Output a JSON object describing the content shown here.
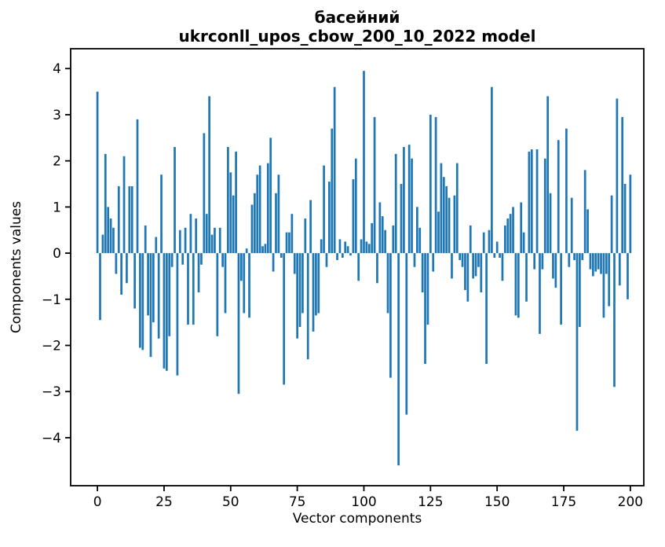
{
  "figure": {
    "background": "#ffffff"
  },
  "chart_data": {
    "type": "bar",
    "title": "басейний",
    "subtitle": "ukrconll_upos_cbow_200_10_2022 model",
    "xlabel": "Vector components",
    "ylabel": "Components values",
    "bar_color": "#1f77b4",
    "axis_color": "#000000",
    "grid": false,
    "legend_position": "none",
    "x_start": 0,
    "x_step": 1,
    "n_bars": 201,
    "xlim": [
      -10.05,
      205.05
    ],
    "ylim": [
      -5.04,
      4.43
    ],
    "xticks": {
      "values": [
        0,
        25,
        50,
        75,
        100,
        125,
        150,
        175,
        200
      ],
      "labels": [
        "0",
        "25",
        "50",
        "75",
        "100",
        "125",
        "150",
        "175",
        "200"
      ]
    },
    "yticks": {
      "values": [
        -4,
        -3,
        -2,
        -1,
        0,
        1,
        2,
        3,
        4
      ],
      "labels": [
        "−4",
        "−3",
        "−2",
        "−1",
        "0",
        "1",
        "2",
        "3",
        "4"
      ]
    },
    "values": [
      3.5,
      -1.45,
      0.4,
      2.15,
      1.0,
      0.75,
      0.55,
      -0.45,
      1.45,
      -0.9,
      2.1,
      -0.65,
      1.45,
      1.45,
      -1.2,
      2.9,
      -2.05,
      -2.1,
      0.6,
      -1.35,
      -2.25,
      -1.5,
      0.35,
      -1.85,
      1.7,
      -2.5,
      -2.55,
      -1.8,
      -0.3,
      2.3,
      -2.65,
      0.5,
      -0.25,
      0.55,
      -1.55,
      0.85,
      -1.55,
      0.75,
      -0.85,
      -0.25,
      2.6,
      0.85,
      3.4,
      0.4,
      0.55,
      -1.8,
      0.55,
      -0.3,
      -1.3,
      2.3,
      1.75,
      1.25,
      2.2,
      -3.05,
      -0.6,
      -1.3,
      0.1,
      -1.4,
      1.05,
      1.3,
      1.7,
      1.9,
      0.15,
      0.2,
      1.95,
      2.5,
      -0.4,
      1.3,
      1.7,
      -0.1,
      -2.85,
      0.45,
      0.45,
      0.85,
      -0.45,
      -1.85,
      -1.6,
      -1.3,
      0.75,
      -2.3,
      1.15,
      -1.7,
      -1.35,
      -1.3,
      0.3,
      1.9,
      -0.3,
      1.55,
      2.7,
      3.6,
      -0.15,
      0.3,
      -0.1,
      0.25,
      0.15,
      -0.05,
      1.6,
      2.05,
      -0.6,
      0.3,
      3.95,
      0.25,
      0.2,
      0.65,
      2.95,
      -0.65,
      1.1,
      0.8,
      0.5,
      -1.3,
      -2.7,
      0.6,
      2.15,
      -4.6,
      1.5,
      2.3,
      -3.5,
      2.35,
      2.05,
      -0.3,
      1.0,
      0.55,
      -0.85,
      -2.4,
      -1.55,
      3.0,
      -0.4,
      2.95,
      0.9,
      1.95,
      1.65,
      1.45,
      1.2,
      -0.55,
      1.25,
      1.95,
      -0.15,
      -0.3,
      -0.8,
      -1.05,
      0.6,
      -0.55,
      -0.5,
      -0.3,
      -0.85,
      0.45,
      -2.4,
      0.5,
      3.6,
      -0.1,
      0.25,
      -0.1,
      -0.6,
      0.6,
      0.75,
      0.85,
      1.0,
      -1.35,
      -1.4,
      1.1,
      0.45,
      -1.05,
      2.2,
      2.25,
      -0.35,
      2.25,
      -1.75,
      -0.35,
      2.05,
      3.4,
      1.3,
      -0.55,
      -0.75,
      2.45,
      -1.55,
      0.0,
      2.7,
      -0.3,
      1.2,
      -0.15,
      -3.85,
      -1.6,
      -0.15,
      1.8,
      0.95,
      -0.35,
      -0.5,
      -0.4,
      -0.35,
      -0.45,
      -1.4,
      -0.45,
      -1.15,
      1.25,
      -2.9,
      3.35,
      -0.7,
      2.95,
      1.5,
      -1.0,
      1.7
    ]
  }
}
